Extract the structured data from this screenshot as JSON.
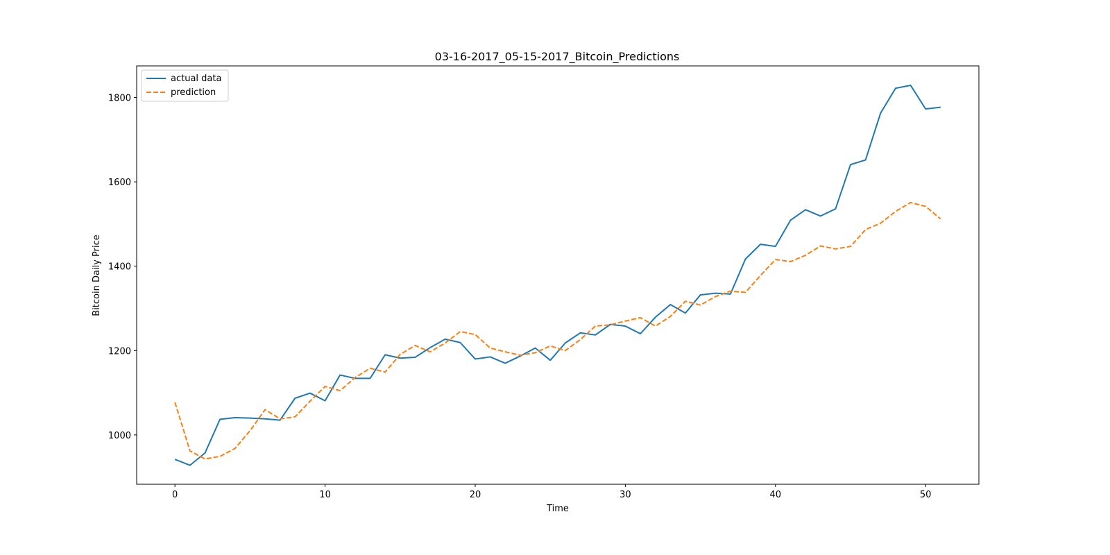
{
  "chart_data": {
    "type": "line",
    "title": "03-16-2017_05-15-2017_Bitcoin_Predictions",
    "xlabel": "Time",
    "ylabel": "Bitcoin Daily Price",
    "xlim": [
      -2.55,
      53.55
    ],
    "ylim": [
      883,
      1875
    ],
    "x_ticks": [
      0,
      10,
      20,
      30,
      40,
      50
    ],
    "y_ticks": [
      1000,
      1200,
      1400,
      1600,
      1800
    ],
    "grid": false,
    "legend_position": "upper left",
    "x": [
      0,
      1,
      2,
      3,
      4,
      5,
      6,
      7,
      8,
      9,
      10,
      11,
      12,
      13,
      14,
      15,
      16,
      17,
      18,
      19,
      20,
      21,
      22,
      23,
      24,
      25,
      26,
      27,
      28,
      29,
      30,
      31,
      32,
      33,
      34,
      35,
      36,
      37,
      38,
      39,
      40,
      41,
      42,
      43,
      44,
      45,
      46,
      47,
      48,
      49,
      50,
      51
    ],
    "series": [
      {
        "name": "actual data",
        "color": "#1f77b4",
        "style": "solid",
        "values": [
          942,
          928,
          957,
          1037,
          1041,
          1040,
          1038,
          1035,
          1087,
          1099,
          1081,
          1142,
          1134,
          1134,
          1190,
          1182,
          1184,
          1207,
          1227,
          1219,
          1180,
          1185,
          1170,
          1187,
          1206,
          1177,
          1218,
          1242,
          1237,
          1262,
          1258,
          1240,
          1279,
          1309,
          1289,
          1332,
          1336,
          1334,
          1417,
          1452,
          1447,
          1509,
          1534,
          1519,
          1536,
          1641,
          1652,
          1763,
          1822,
          1829,
          1773,
          1777
        ]
      },
      {
        "name": "prediction",
        "color": "#ff7f0e",
        "style": "dashed",
        "values": [
          1077,
          962,
          943,
          949,
          968,
          1010,
          1060,
          1038,
          1043,
          1080,
          1115,
          1105,
          1136,
          1158,
          1149,
          1191,
          1212,
          1197,
          1218,
          1245,
          1238,
          1206,
          1197,
          1189,
          1195,
          1211,
          1200,
          1226,
          1258,
          1261,
          1270,
          1278,
          1258,
          1281,
          1317,
          1308,
          1328,
          1341,
          1338,
          1378,
          1416,
          1411,
          1426,
          1448,
          1441,
          1447,
          1487,
          1502,
          1530,
          1551,
          1542,
          1512
        ]
      }
    ]
  }
}
